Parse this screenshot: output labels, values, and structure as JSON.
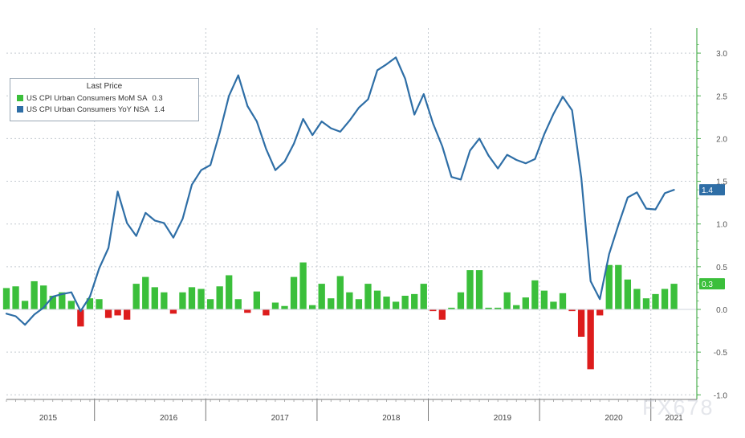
{
  "chart_data": {
    "type": "bar+line",
    "y_axis_position": "right",
    "ylim": [
      -1.0,
      3.2
    ],
    "yticks": [
      "3.0",
      "2.5",
      "2.0",
      "1.5",
      "1.0",
      "0.5",
      "0.0",
      "-0.5",
      "-1.0"
    ],
    "ytick_values": [
      3.0,
      2.5,
      2.0,
      1.5,
      1.0,
      0.5,
      0.0,
      -0.5,
      -1.0
    ],
    "x_range_months": [
      0,
      74
    ],
    "year_labels": [
      {
        "label": "2015",
        "center": 5
      },
      {
        "label": "2016",
        "center": 18
      },
      {
        "label": "2017",
        "center": 30
      },
      {
        "label": "2018",
        "center": 42
      },
      {
        "label": "2019",
        "center": 54
      },
      {
        "label": "2020",
        "center": 66
      },
      {
        "label": "2021",
        "center": 72.5
      }
    ],
    "year_boundaries": [
      10,
      22,
      34,
      46,
      58,
      70
    ],
    "legend": {
      "title": "Last Price",
      "items": [
        {
          "name": "US CPI Urban Consumers MoM SA",
          "value": "0.3",
          "color": "#3bbf3b"
        },
        {
          "name": "US CPI Urban Consumers YoY NSA",
          "value": "1.4",
          "color": "#2e6ea6"
        }
      ]
    },
    "series": [
      {
        "name": "US CPI Urban Consumers MoM SA",
        "kind": "bar",
        "positive_color": "#3bbf3b",
        "negative_color": "#dd1c1c",
        "last_value_label": "0.3",
        "values": [
          0.25,
          0.27,
          0.1,
          0.33,
          0.28,
          0.16,
          0.2,
          0.1,
          -0.2,
          0.13,
          0.12,
          -0.1,
          -0.07,
          -0.12,
          0.3,
          0.38,
          0.26,
          0.2,
          -0.05,
          0.2,
          0.26,
          0.24,
          0.12,
          0.27,
          0.4,
          0.12,
          -0.04,
          0.21,
          -0.07,
          0.08,
          0.04,
          0.38,
          0.55,
          0.05,
          0.3,
          0.13,
          0.39,
          0.2,
          0.12,
          0.3,
          0.22,
          0.15,
          0.09,
          0.16,
          0.18,
          0.3,
          -0.02,
          -0.12,
          0.02,
          0.2,
          0.46,
          0.46,
          0.02,
          0.02,
          0.2,
          0.05,
          0.14,
          0.34,
          0.22,
          0.09,
          0.19,
          -0.02,
          -0.32,
          -0.7,
          -0.07,
          0.52,
          0.52,
          0.35,
          0.24,
          0.13,
          0.18,
          0.24,
          0.3
        ]
      },
      {
        "name": "US CPI Urban Consumers YoY NSA",
        "kind": "line",
        "color": "#2e6ea6",
        "last_value_label": "1.4",
        "values": [
          -0.05,
          -0.08,
          -0.18,
          -0.06,
          0.02,
          0.15,
          0.18,
          0.2,
          -0.02,
          0.15,
          0.48,
          0.72,
          1.38,
          1.01,
          0.86,
          1.13,
          1.04,
          1.01,
          0.84,
          1.06,
          1.46,
          1.63,
          1.69,
          2.07,
          2.5,
          2.74,
          2.38,
          2.2,
          1.88,
          1.63,
          1.73,
          1.94,
          2.23,
          2.04,
          2.2,
          2.12,
          2.08,
          2.21,
          2.36,
          2.46,
          2.8,
          2.87,
          2.95,
          2.7,
          2.28,
          2.52,
          2.18,
          1.91,
          1.55,
          1.52,
          1.86,
          2.0,
          1.8,
          1.65,
          1.81,
          1.75,
          1.71,
          1.76,
          2.05,
          2.29,
          2.49,
          2.33,
          1.54,
          0.33,
          0.12,
          0.65,
          0.99,
          1.31,
          1.37,
          1.18,
          1.17,
          1.36,
          1.4
        ]
      }
    ]
  },
  "watermark": "FX678"
}
